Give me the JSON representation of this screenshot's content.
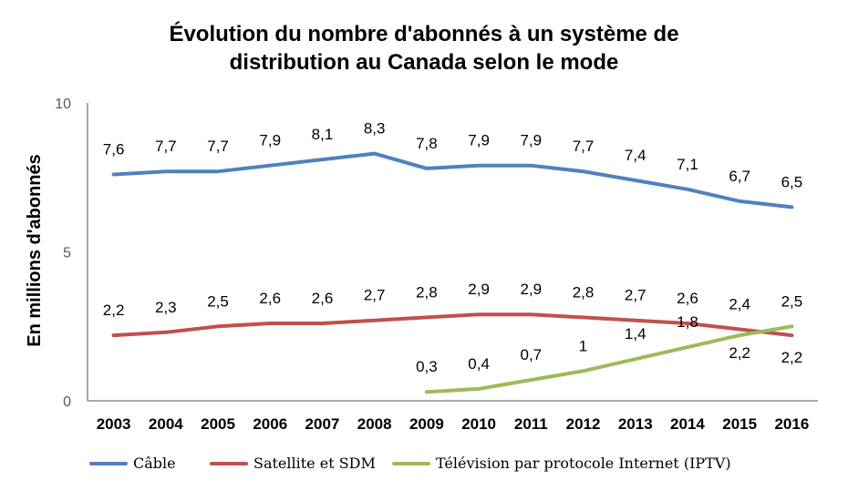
{
  "chart_data": {
    "type": "line",
    "title_lines": [
      "Évolution du nombre d'abonnés à un système de",
      "distribution au Canada selon le mode"
    ],
    "xlabel": "",
    "ylabel": "En millions d'abonnés",
    "ylim": [
      0,
      10
    ],
    "y_ticks": [
      "0",
      "5",
      "10"
    ],
    "y_tick_values": [
      0,
      5,
      10
    ],
    "grid": false,
    "legend_position": "bottom",
    "categories": [
      "2003",
      "2004",
      "2005",
      "2006",
      "2007",
      "2008",
      "2009",
      "2010",
      "2011",
      "2012",
      "2013",
      "2014",
      "2015",
      "2016"
    ],
    "series": [
      {
        "name": "Câble",
        "color": "#4f81bd",
        "values": [
          7.6,
          7.7,
          7.7,
          7.9,
          8.1,
          8.3,
          7.8,
          7.9,
          7.9,
          7.7,
          7.4,
          7.1,
          6.7,
          6.5
        ],
        "labels": [
          "7,6",
          "7,7",
          "7,7",
          "7,9",
          "8,1",
          "8,3",
          "7,8",
          "7,9",
          "7,9",
          "7,7",
          "7,4",
          "7,1",
          "6,7",
          "6,5"
        ]
      },
      {
        "name": "Satellite et SDM",
        "color": "#c0504d",
        "values": [
          2.2,
          2.3,
          2.5,
          2.6,
          2.6,
          2.7,
          2.8,
          2.9,
          2.9,
          2.8,
          2.7,
          2.6,
          2.4,
          2.2
        ],
        "labels": [
          "2,2",
          "2,3",
          "2,5",
          "2,6",
          "2,6",
          "2,7",
          "2,8",
          "2,9",
          "2,9",
          "2,8",
          "2,7",
          "2,6",
          "2,4",
          "2,2"
        ]
      },
      {
        "name": "Télévision par protocole Internet (IPTV)",
        "color": "#9bbb59",
        "values": [
          null,
          null,
          null,
          null,
          null,
          null,
          0.3,
          0.4,
          0.7,
          1.0,
          1.4,
          1.8,
          2.2,
          2.5
        ],
        "labels": [
          "",
          "",
          "",
          "",
          "",
          "",
          "0,3",
          "0,4",
          "0,7",
          "1",
          "1,4",
          "1,8",
          "2,2",
          "2,5"
        ]
      }
    ]
  }
}
